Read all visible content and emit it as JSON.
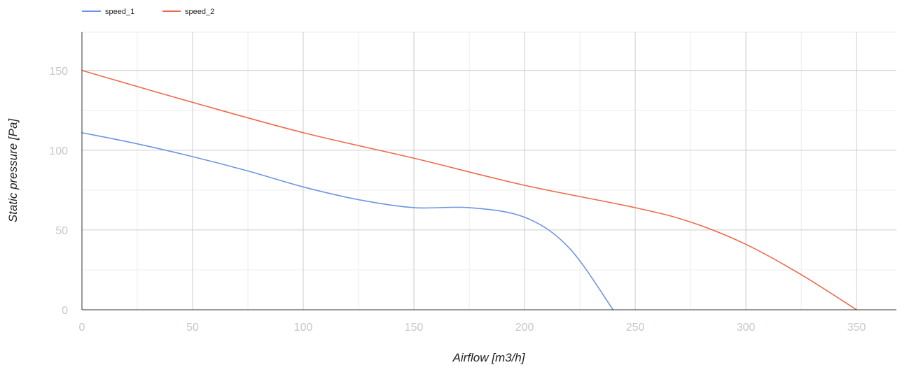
{
  "chart_data": {
    "type": "line",
    "xlabel": "Airflow [m3/h]",
    "ylabel": "Static pressure [Pa]",
    "xlim": [
      0,
      368
    ],
    "ylim": [
      0,
      174
    ],
    "x_ticks": [
      0,
      50,
      100,
      150,
      200,
      250,
      300,
      350
    ],
    "y_ticks": [
      0,
      50,
      100,
      150
    ],
    "x_minor_grid": [
      25,
      75,
      125,
      175,
      225,
      275,
      325
    ],
    "y_minor_grid": [
      25,
      75,
      125
    ],
    "grid": true,
    "legend_position": "top-left",
    "series": [
      {
        "name": "speed_1",
        "color": "#6f95e2",
        "points": [
          [
            0,
            111
          ],
          [
            25,
            104
          ],
          [
            50,
            96
          ],
          [
            75,
            87
          ],
          [
            100,
            77
          ],
          [
            125,
            69
          ],
          [
            150,
            64
          ],
          [
            175,
            64
          ],
          [
            200,
            58
          ],
          [
            220,
            39
          ],
          [
            240,
            0
          ]
        ]
      },
      {
        "name": "speed_2",
        "color": "#ee6a4c",
        "points": [
          [
            0,
            150
          ],
          [
            50,
            130
          ],
          [
            100,
            111
          ],
          [
            150,
            95
          ],
          [
            200,
            78
          ],
          [
            250,
            64
          ],
          [
            275,
            55
          ],
          [
            300,
            41
          ],
          [
            325,
            22
          ],
          [
            350,
            0
          ]
        ]
      }
    ]
  }
}
